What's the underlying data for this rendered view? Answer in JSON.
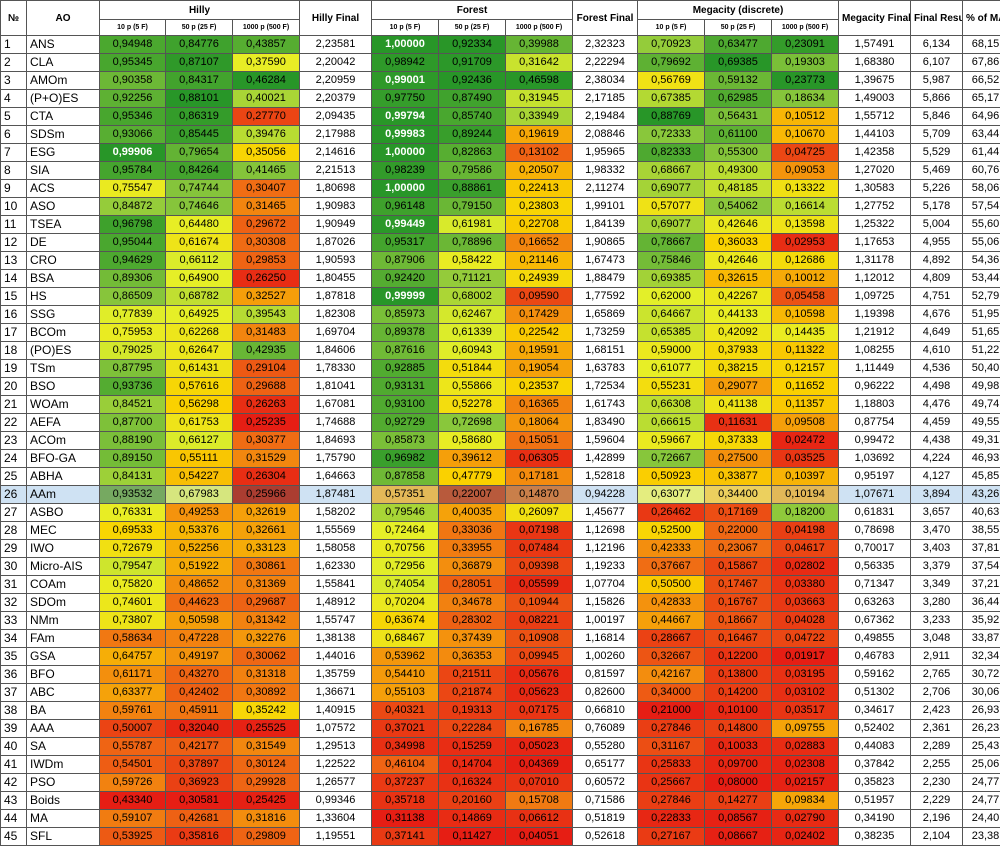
{
  "table": {
    "header": {
      "no": "№",
      "ao": "AO",
      "hilly": "Hilly",
      "hilly_final": "Hilly Final",
      "forest": "Forest",
      "forest_final": "Forest Final",
      "megacity": "Megacity (discrete)",
      "megacity_final": "Megacity Final",
      "final_result": "Final Result",
      "pct_max": "% of MAX",
      "sub": [
        "10 p (5 F)",
        "50 p (25 F)",
        "1000 p (500 F)",
        "10 p (5 F)",
        "50 p (25 F)",
        "1000 p (500 F)",
        "10 p (5 F)",
        "50 p (25 F)",
        "1000 p (500 F)"
      ]
    },
    "selected_row": 25,
    "rows": [
      [
        "1",
        "ANS",
        "0,94948",
        "0,84776",
        "0,43857",
        "2,23581",
        "1,00000",
        "0,92334",
        "0,39988",
        "2,32323",
        "0,70923",
        "0,63477",
        "0,23091",
        "1,57491",
        "6,134",
        "68,15"
      ],
      [
        "2",
        "CLA",
        "0,95345",
        "0,87107",
        "0,37590",
        "2,20042",
        "0,98942",
        "0,91709",
        "0,31642",
        "2,22294",
        "0,79692",
        "0,69385",
        "0,19303",
        "1,68380",
        "6,107",
        "67,86"
      ],
      [
        "3",
        "AMOm",
        "0,90358",
        "0,84317",
        "0,46284",
        "2,20959",
        "0,99001",
        "0,92436",
        "0,46598",
        "2,38034",
        "0,56769",
        "0,59132",
        "0,23773",
        "1,39675",
        "5,987",
        "66,52"
      ],
      [
        "4",
        "(P+O)ES",
        "0,92256",
        "0,88101",
        "0,40021",
        "2,20379",
        "0,97750",
        "0,87490",
        "0,31945",
        "2,17185",
        "0,67385",
        "0,62985",
        "0,18634",
        "1,49003",
        "5,866",
        "65,17"
      ],
      [
        "5",
        "CTA",
        "0,95346",
        "0,86319",
        "0,27770",
        "2,09435",
        "0,99794",
        "0,85740",
        "0,33949",
        "2,19484",
        "0,88769",
        "0,56431",
        "0,10512",
        "1,55712",
        "5,846",
        "64,96"
      ],
      [
        "6",
        "SDSm",
        "0,93066",
        "0,85445",
        "0,39476",
        "2,17988",
        "0,99983",
        "0,89244",
        "0,19619",
        "2,08846",
        "0,72333",
        "0,61100",
        "0,10670",
        "1,44103",
        "5,709",
        "63,44"
      ],
      [
        "7",
        "ESG",
        "0,99906",
        "0,79654",
        "0,35056",
        "2,14616",
        "1,00000",
        "0,82863",
        "0,13102",
        "1,95965",
        "0,82333",
        "0,55300",
        "0,04725",
        "1,42358",
        "5,529",
        "61,44"
      ],
      [
        "8",
        "SIA",
        "0,95784",
        "0,84264",
        "0,41465",
        "2,21513",
        "0,98239",
        "0,79586",
        "0,20507",
        "1,98332",
        "0,68667",
        "0,49300",
        "0,09053",
        "1,27020",
        "5,469",
        "60,76"
      ],
      [
        "9",
        "ACS",
        "0,75547",
        "0,74744",
        "0,30407",
        "1,80698",
        "1,00000",
        "0,88861",
        "0,22413",
        "2,11274",
        "0,69077",
        "0,48185",
        "0,13322",
        "1,30583",
        "5,226",
        "58,06"
      ],
      [
        "10",
        "ASO",
        "0,84872",
        "0,74646",
        "0,31465",
        "1,90983",
        "0,96148",
        "0,79150",
        "0,23803",
        "1,99101",
        "0,57077",
        "0,54062",
        "0,16614",
        "1,27752",
        "5,178",
        "57,54"
      ],
      [
        "11",
        "TSEA",
        "0,96798",
        "0,64480",
        "0,29672",
        "1,90949",
        "0,99449",
        "0,61981",
        "0,22708",
        "1,84139",
        "0,69077",
        "0,42646",
        "0,13598",
        "1,25322",
        "5,004",
        "55,60"
      ],
      [
        "12",
        "DE",
        "0,95044",
        "0,61674",
        "0,30308",
        "1,87026",
        "0,95317",
        "0,78896",
        "0,16652",
        "1,90865",
        "0,78667",
        "0,36033",
        "0,02953",
        "1,17653",
        "4,955",
        "55,06"
      ],
      [
        "13",
        "CRO",
        "0,94629",
        "0,66112",
        "0,29853",
        "1,90593",
        "0,87906",
        "0,58422",
        "0,21146",
        "1,67473",
        "0,75846",
        "0,42646",
        "0,12686",
        "1,31178",
        "4,892",
        "54,36"
      ],
      [
        "14",
        "BSA",
        "0,89306",
        "0,64900",
        "0,26250",
        "1,80455",
        "0,92420",
        "0,71121",
        "0,24939",
        "1,88479",
        "0,69385",
        "0,32615",
        "0,10012",
        "1,12012",
        "4,809",
        "53,44"
      ],
      [
        "15",
        "HS",
        "0,86509",
        "0,68782",
        "0,32527",
        "1,87818",
        "0,99999",
        "0,68002",
        "0,09590",
        "1,77592",
        "0,62000",
        "0,42267",
        "0,05458",
        "1,09725",
        "4,751",
        "52,79"
      ],
      [
        "16",
        "SSG",
        "0,77839",
        "0,64925",
        "0,39543",
        "1,82308",
        "0,85973",
        "0,62467",
        "0,17429",
        "1,65869",
        "0,64667",
        "0,44133",
        "0,10598",
        "1,19398",
        "4,676",
        "51,95"
      ],
      [
        "17",
        "BCOm",
        "0,75953",
        "0,62268",
        "0,31483",
        "1,69704",
        "0,89378",
        "0,61339",
        "0,22542",
        "1,73259",
        "0,65385",
        "0,42092",
        "0,14435",
        "1,21912",
        "4,649",
        "51,65"
      ],
      [
        "18",
        "(PO)ES",
        "0,79025",
        "0,62647",
        "0,42935",
        "1,84606",
        "0,87616",
        "0,60943",
        "0,19591",
        "1,68151",
        "0,59000",
        "0,37933",
        "0,11322",
        "1,08255",
        "4,610",
        "51,22"
      ],
      [
        "19",
        "TSm",
        "0,87795",
        "0,61431",
        "0,29104",
        "1,78330",
        "0,92885",
        "0,51844",
        "0,19054",
        "1,63783",
        "0,61077",
        "0,38215",
        "0,12157",
        "1,11449",
        "4,536",
        "50,40"
      ],
      [
        "20",
        "BSO",
        "0,93736",
        "0,57616",
        "0,29688",
        "1,81041",
        "0,93131",
        "0,55866",
        "0,23537",
        "1,72534",
        "0,55231",
        "0,29077",
        "0,11652",
        "0,96222",
        "4,498",
        "49,98"
      ],
      [
        "21",
        "WOAm",
        "0,84521",
        "0,56298",
        "0,26263",
        "1,67081",
        "0,93100",
        "0,52278",
        "0,16365",
        "1,61743",
        "0,66308",
        "0,41138",
        "0,11357",
        "1,18803",
        "4,476",
        "49,74"
      ],
      [
        "22",
        "AEFA",
        "0,87700",
        "0,61753",
        "0,25235",
        "1,74688",
        "0,92729",
        "0,72698",
        "0,18064",
        "1,83490",
        "0,66615",
        "0,11631",
        "0,09508",
        "0,87754",
        "4,459",
        "49,55"
      ],
      [
        "23",
        "ACOm",
        "0,88190",
        "0,66127",
        "0,30377",
        "1,84693",
        "0,85873",
        "0,58680",
        "0,15051",
        "1,59604",
        "0,59667",
        "0,37333",
        "0,02472",
        "0,99472",
        "4,438",
        "49,31"
      ],
      [
        "24",
        "BFO-GA",
        "0,89150",
        "0,55111",
        "0,31529",
        "1,75790",
        "0,96982",
        "0,39612",
        "0,06305",
        "1,42899",
        "0,72667",
        "0,27500",
        "0,03525",
        "1,03692",
        "4,224",
        "46,93"
      ],
      [
        "25",
        "ABHA",
        "0,84131",
        "0,54227",
        "0,26304",
        "1,64663",
        "0,87858",
        "0,47779",
        "0,17181",
        "1,52818",
        "0,50923",
        "0,33877",
        "0,10397",
        "0,95197",
        "4,127",
        "45,85"
      ],
      [
        "26",
        "AAm",
        "0,93532",
        "0,67983",
        "0,25966",
        "1,87481",
        "0,57351",
        "0,22007",
        "0,14870",
        "0,94228",
        "0,63077",
        "0,34400",
        "0,10194",
        "1,07671",
        "3,894",
        "43,26"
      ],
      [
        "27",
        "ASBO",
        "0,76331",
        "0,49253",
        "0,32619",
        "1,58202",
        "0,79546",
        "0,40035",
        "0,26097",
        "1,45677",
        "0,26462",
        "0,17169",
        "0,18200",
        "0,61831",
        "3,657",
        "40,63"
      ],
      [
        "28",
        "MEC",
        "0,69533",
        "0,53376",
        "0,32661",
        "1,55569",
        "0,72464",
        "0,33036",
        "0,07198",
        "1,12698",
        "0,52500",
        "0,22000",
        "0,04198",
        "0,78698",
        "3,470",
        "38,55"
      ],
      [
        "29",
        "IWO",
        "0,72679",
        "0,52256",
        "0,33123",
        "1,58058",
        "0,70756",
        "0,33955",
        "0,07484",
        "1,12196",
        "0,42333",
        "0,23067",
        "0,04617",
        "0,70017",
        "3,403",
        "37,81"
      ],
      [
        "30",
        "Micro-AIS",
        "0,79547",
        "0,51922",
        "0,30861",
        "1,62330",
        "0,72956",
        "0,36879",
        "0,09398",
        "1,19233",
        "0,37667",
        "0,15867",
        "0,02802",
        "0,56335",
        "3,379",
        "37,54"
      ],
      [
        "31",
        "COAm",
        "0,75820",
        "0,48652",
        "0,31369",
        "1,55841",
        "0,74054",
        "0,28051",
        "0,05599",
        "1,07704",
        "0,50500",
        "0,17467",
        "0,03380",
        "0,71347",
        "3,349",
        "37,21"
      ],
      [
        "32",
        "SDOm",
        "0,74601",
        "0,44623",
        "0,29687",
        "1,48912",
        "0,70204",
        "0,34678",
        "0,10944",
        "1,15826",
        "0,42833",
        "0,16767",
        "0,03663",
        "0,63263",
        "3,280",
        "36,44"
      ],
      [
        "33",
        "NMm",
        "0,73807",
        "0,50598",
        "0,31342",
        "1,55747",
        "0,63674",
        "0,28302",
        "0,08221",
        "1,00197",
        "0,44667",
        "0,18667",
        "0,04028",
        "0,67362",
        "3,233",
        "35,92"
      ],
      [
        "34",
        "FAm",
        "0,58634",
        "0,47228",
        "0,32276",
        "1,38138",
        "0,68467",
        "0,37439",
        "0,10908",
        "1,16814",
        "0,28667",
        "0,16467",
        "0,04722",
        "0,49855",
        "3,048",
        "33,87"
      ],
      [
        "35",
        "GSA",
        "0,64757",
        "0,49197",
        "0,30062",
        "1,44016",
        "0,53962",
        "0,36353",
        "0,09945",
        "1,00260",
        "0,32667",
        "0,12200",
        "0,01917",
        "0,46783",
        "2,911",
        "32,34"
      ],
      [
        "36",
        "BFO",
        "0,61171",
        "0,43270",
        "0,31318",
        "1,35759",
        "0,54410",
        "0,21511",
        "0,05676",
        "0,81597",
        "0,42167",
        "0,13800",
        "0,03195",
        "0,59162",
        "2,765",
        "30,72"
      ],
      [
        "37",
        "ABC",
        "0,63377",
        "0,42402",
        "0,30892",
        "1,36671",
        "0,55103",
        "0,21874",
        "0,05623",
        "0,82600",
        "0,34000",
        "0,14200",
        "0,03102",
        "0,51302",
        "2,706",
        "30,06"
      ],
      [
        "38",
        "BA",
        "0,59761",
        "0,45911",
        "0,35242",
        "1,40915",
        "0,40321",
        "0,19313",
        "0,07175",
        "0,66810",
        "0,21000",
        "0,10100",
        "0,03517",
        "0,34617",
        "2,423",
        "26,93"
      ],
      [
        "39",
        "AAA",
        "0,50007",
        "0,32040",
        "0,25525",
        "1,07572",
        "0,37021",
        "0,22284",
        "0,16785",
        "0,76089",
        "0,27846",
        "0,14800",
        "0,09755",
        "0,52402",
        "2,361",
        "26,23"
      ],
      [
        "40",
        "SA",
        "0,55787",
        "0,42177",
        "0,31549",
        "1,29513",
        "0,34998",
        "0,15259",
        "0,05023",
        "0,55280",
        "0,31167",
        "0,10033",
        "0,02883",
        "0,44083",
        "2,289",
        "25,43"
      ],
      [
        "41",
        "IWDm",
        "0,54501",
        "0,37897",
        "0,30124",
        "1,22522",
        "0,46104",
        "0,14704",
        "0,04369",
        "0,65177",
        "0,25833",
        "0,09700",
        "0,02308",
        "0,37842",
        "2,255",
        "25,06"
      ],
      [
        "42",
        "PSO",
        "0,59726",
        "0,36923",
        "0,29928",
        "1,26577",
        "0,37237",
        "0,16324",
        "0,07010",
        "0,60572",
        "0,25667",
        "0,08000",
        "0,02157",
        "0,35823",
        "2,230",
        "24,77"
      ],
      [
        "43",
        "Boids",
        "0,43340",
        "0,30581",
        "0,25425",
        "0,99346",
        "0,35718",
        "0,20160",
        "0,15708",
        "0,71586",
        "0,27846",
        "0,14277",
        "0,09834",
        "0,51957",
        "2,229",
        "24,77"
      ],
      [
        "44",
        "MA",
        "0,59107",
        "0,42681",
        "0,31816",
        "1,33604",
        "0,31138",
        "0,14869",
        "0,06612",
        "0,51819",
        "0,22833",
        "0,08567",
        "0,02790",
        "0,34190",
        "2,196",
        "24,40"
      ],
      [
        "45",
        "SFL",
        "0,53925",
        "0,35816",
        "0,29809",
        "1,19551",
        "0,37141",
        "0,11427",
        "0,04051",
        "0,52618",
        "0,27167",
        "0,08667",
        "0,02402",
        "0,38235",
        "2,104",
        "23,38"
      ]
    ]
  }
}
